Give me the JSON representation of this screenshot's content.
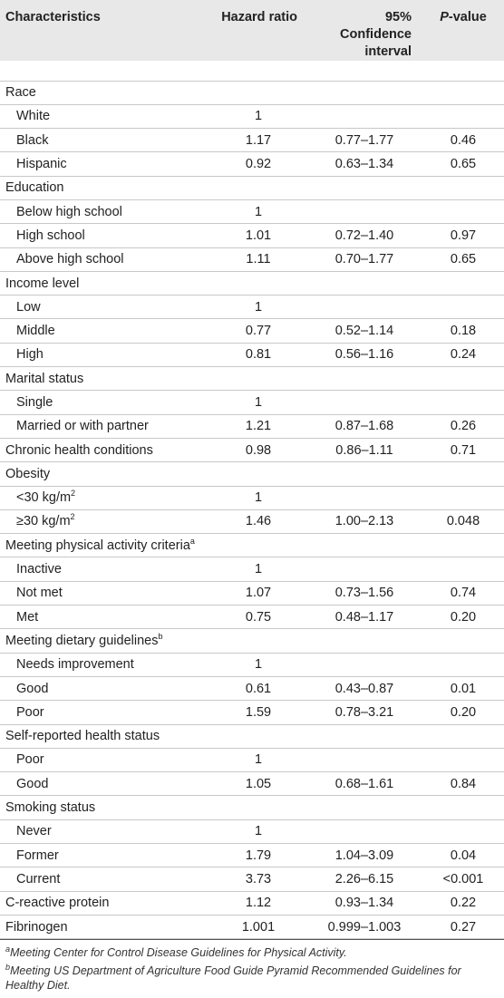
{
  "headers": {
    "characteristics": "Characteristics",
    "hazard_ratio": "Hazard ratio",
    "ci_line1": "95% Confidence",
    "ci_line2": "interval",
    "pvalue_p": "P",
    "pvalue_rest": "-value"
  },
  "rows": [
    {
      "label": "Race",
      "sub": false,
      "hr": "",
      "ci": "",
      "p": ""
    },
    {
      "label": "White",
      "sub": true,
      "hr": "1",
      "ci": "",
      "p": ""
    },
    {
      "label": "Black",
      "sub": true,
      "hr": "1.17",
      "ci": "0.77–1.77",
      "p": "0.46"
    },
    {
      "label": "Hispanic",
      "sub": true,
      "hr": "0.92",
      "ci": "0.63–1.34",
      "p": "0.65"
    },
    {
      "label": "Education",
      "sub": false,
      "hr": "",
      "ci": "",
      "p": ""
    },
    {
      "label": "Below high school",
      "sub": true,
      "hr": "1",
      "ci": "",
      "p": ""
    },
    {
      "label": "High school",
      "sub": true,
      "hr": "1.01",
      "ci": "0.72–1.40",
      "p": "0.97"
    },
    {
      "label": "Above high school",
      "sub": true,
      "hr": "1.11",
      "ci": "0.70–1.77",
      "p": "0.65"
    },
    {
      "label": "Income level",
      "sub": false,
      "hr": "",
      "ci": "",
      "p": ""
    },
    {
      "label": "Low",
      "sub": true,
      "hr": "1",
      "ci": "",
      "p": ""
    },
    {
      "label": "Middle",
      "sub": true,
      "hr": "0.77",
      "ci": "0.52–1.14",
      "p": "0.18"
    },
    {
      "label": "High",
      "sub": true,
      "hr": "0.81",
      "ci": "0.56–1.16",
      "p": "0.24"
    },
    {
      "label": "Marital status",
      "sub": false,
      "hr": "",
      "ci": "",
      "p": ""
    },
    {
      "label": "Single",
      "sub": true,
      "hr": "1",
      "ci": "",
      "p": ""
    },
    {
      "label": "Married or with partner",
      "sub": true,
      "hr": "1.21",
      "ci": "0.87–1.68",
      "p": "0.26"
    },
    {
      "label": "Chronic health conditions",
      "sub": false,
      "hr": "0.98",
      "ci": "0.86–1.11",
      "p": "0.71"
    },
    {
      "label": "Obesity",
      "sub": false,
      "hr": "",
      "ci": "",
      "p": ""
    },
    {
      "label": "<30 kg/m",
      "sup": "2",
      "sub": true,
      "hr": "1",
      "ci": "",
      "p": ""
    },
    {
      "label": "≥30 kg/m",
      "sup": "2",
      "sub": true,
      "hr": "1.46",
      "ci": "1.00–2.13",
      "p": "0.048"
    },
    {
      "label": "Meeting physical activity criteria",
      "sup": "a",
      "sub": false,
      "hr": "",
      "ci": "",
      "p": ""
    },
    {
      "label": "Inactive",
      "sub": true,
      "hr": "1",
      "ci": "",
      "p": ""
    },
    {
      "label": "Not met",
      "sub": true,
      "hr": "1.07",
      "ci": "0.73–1.56",
      "p": "0.74"
    },
    {
      "label": "Met",
      "sub": true,
      "hr": "0.75",
      "ci": "0.48–1.17",
      "p": "0.20"
    },
    {
      "label": "Meeting dietary guidelines",
      "sup": "b",
      "sub": false,
      "hr": "",
      "ci": "",
      "p": ""
    },
    {
      "label": "Needs improvement",
      "sub": true,
      "hr": "1",
      "ci": "",
      "p": ""
    },
    {
      "label": "Good",
      "sub": true,
      "hr": "0.61",
      "ci": "0.43–0.87",
      "p": "0.01"
    },
    {
      "label": "Poor",
      "sub": true,
      "hr": "1.59",
      "ci": "0.78–3.21",
      "p": "0.20"
    },
    {
      "label": "Self-reported health status",
      "sub": false,
      "hr": "",
      "ci": "",
      "p": ""
    },
    {
      "label": "Poor",
      "sub": true,
      "hr": "1",
      "ci": "",
      "p": ""
    },
    {
      "label": "Good",
      "sub": true,
      "hr": "1.05",
      "ci": "0.68–1.61",
      "p": "0.84"
    },
    {
      "label": "Smoking status",
      "sub": false,
      "hr": "",
      "ci": "",
      "p": ""
    },
    {
      "label": "Never",
      "sub": true,
      "hr": "1",
      "ci": "",
      "p": ""
    },
    {
      "label": "Former",
      "sub": true,
      "hr": "1.79",
      "ci": "1.04–3.09",
      "p": "0.04"
    },
    {
      "label": "Current",
      "sub": true,
      "hr": "3.73",
      "ci": "2.26–6.15",
      "p": "<0.001"
    },
    {
      "label": "C-reactive protein",
      "sub": false,
      "hr": "1.12",
      "ci": "0.93–1.34",
      "p": "0.22"
    },
    {
      "label": "Fibrinogen",
      "sub": false,
      "hr": "1.001",
      "ci": "0.999–1.003",
      "p": "0.27"
    }
  ],
  "footnotes": [
    {
      "mark": "a",
      "text": "Meeting Center for Control Disease Guidelines for Physical Activity."
    },
    {
      "mark": "b",
      "text": "Meeting US Department of Agriculture Food Guide Pyramid Recommended Guidelines for Healthy Diet."
    }
  ]
}
